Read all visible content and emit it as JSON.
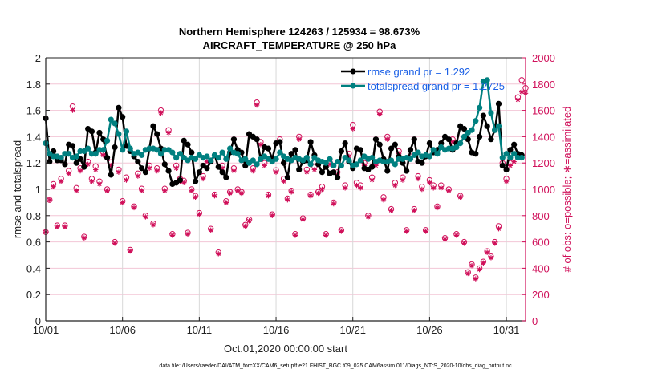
{
  "chart_data": {
    "type": "line",
    "title": [
      "Northern Hemisphere 124263 / 125934 = 98.673%",
      "AIRCRAFT_TEMPERATURE @ 250 hPa"
    ],
    "xlabel": "Oct.01,2020 00:00:00 start",
    "ylabel": "rmse and totalspread",
    "y2label": "# of obs: o=possible; ∗=assimilated",
    "x_ticks": [
      "10/01",
      "10/06",
      "10/11",
      "10/16",
      "10/21",
      "10/26",
      "10/31"
    ],
    "x_tick_days": [
      0,
      5,
      10,
      15,
      20,
      25,
      30
    ],
    "xlim_days": [
      0,
      31.25
    ],
    "ylim": [
      0,
      2
    ],
    "y_ticks": [
      0,
      0.2,
      0.4,
      0.6,
      0.8,
      1,
      1.2,
      1.4,
      1.6,
      1.8,
      2
    ],
    "y2lim": [
      0,
      2000
    ],
    "y2_ticks": [
      0,
      200,
      400,
      600,
      800,
      1000,
      1200,
      1400,
      1600,
      1800,
      2000
    ],
    "grid": true,
    "legend_position": "top-right",
    "footnote": "data file: /Users/raeder/DAI/ATM_forcXX/CAM6_setup/f.e21.FHIST_BGC.f09_025.CAM6assim.011/Diags_NTrS_2020-10/obs_diag_output.nc",
    "time_step_days": 0.25,
    "series": [
      {
        "name": "rmse grand pr = 1.292",
        "color": "#000000",
        "axis": "left",
        "values": [
          1.54,
          1.21,
          1.29,
          1.22,
          1.22,
          1.19,
          1.34,
          1.33,
          1.2,
          1.23,
          1.17,
          1.46,
          1.44,
          1.28,
          1.43,
          1.38,
          1.24,
          1.11,
          1.32,
          1.62,
          1.55,
          1.33,
          1.29,
          1.25,
          1.21,
          1.16,
          1.13,
          1.31,
          1.48,
          1.42,
          1.31,
          1.19,
          1.14,
          1.04,
          1.05,
          1.07,
          1.37,
          1.34,
          1.28,
          1.06,
          1.13,
          1.18,
          1.16,
          1.21,
          1.26,
          1.17,
          1.13,
          1.09,
          1.28,
          1.38,
          1.3,
          1.28,
          1.18,
          1.42,
          1.4,
          1.38,
          1.23,
          1.32,
          1.31,
          1.23,
          1.35,
          1.36,
          1.2,
          1.09,
          1.27,
          1.3,
          1.15,
          1.21,
          1.22,
          1.36,
          1.26,
          1.19,
          1.13,
          1.17,
          1.12,
          1.13,
          1.09,
          1.29,
          1.35,
          1.21,
          1.16,
          1.31,
          1.3,
          1.16,
          1.15,
          1.17,
          1.38,
          1.34,
          1.23,
          1.14,
          1.31,
          1.34,
          1.25,
          1.2,
          1.14,
          1.3,
          1.38,
          1.21,
          1.2,
          1.25,
          1.35,
          1.28,
          1.3,
          1.35,
          1.4,
          1.38,
          1.3,
          1.35,
          1.48,
          1.46,
          1.38,
          1.28,
          1.27,
          1.4,
          1.56,
          1.48,
          1.38,
          1.45,
          1.65,
          1.18,
          1.15,
          1.3,
          1.34,
          1.27,
          1.26
        ]
      },
      {
        "name": "totalspread grand pr = 1.2725",
        "color": "#008080",
        "axis": "left",
        "values": [
          1.35,
          1.27,
          1.25,
          1.25,
          1.24,
          1.27,
          1.27,
          1.24,
          1.25,
          1.29,
          1.29,
          1.31,
          1.27,
          1.27,
          1.3,
          1.3,
          1.37,
          1.53,
          1.5,
          1.42,
          1.3,
          1.44,
          1.31,
          1.27,
          1.28,
          1.26,
          1.3,
          1.31,
          1.31,
          1.3,
          1.27,
          1.3,
          1.3,
          1.28,
          1.24,
          1.27,
          1.24,
          1.22,
          1.24,
          1.23,
          1.26,
          1.24,
          1.25,
          1.22,
          1.26,
          1.24,
          1.28,
          1.23,
          1.31,
          1.28,
          1.27,
          1.22,
          1.23,
          1.2,
          1.22,
          1.19,
          1.23,
          1.25,
          1.23,
          1.21,
          1.23,
          1.28,
          1.25,
          1.23,
          1.22,
          1.24,
          1.23,
          1.22,
          1.24,
          1.19,
          1.24,
          1.22,
          1.21,
          1.2,
          1.23,
          1.18,
          1.21,
          1.18,
          1.24,
          1.22,
          1.18,
          1.19,
          1.22,
          1.25,
          1.23,
          1.24,
          1.21,
          1.22,
          1.21,
          1.21,
          1.22,
          1.19,
          1.23,
          1.23,
          1.24,
          1.23,
          1.26,
          1.28,
          1.25,
          1.26,
          1.25,
          1.3,
          1.27,
          1.32,
          1.3,
          1.31,
          1.31,
          1.32,
          1.35,
          1.4,
          1.43,
          1.45,
          1.52,
          1.62,
          1.82,
          1.83,
          1.58,
          1.45,
          1.48,
          1.24,
          1.27,
          1.24,
          1.27,
          1.24,
          1.24
        ]
      },
      {
        "name": "possible obs",
        "color": "#d0105a",
        "axis": "right",
        "marker": "o",
        "values": [
          675,
          920,
          1040,
          725,
          1080,
          725,
          1140,
          1630,
          1010,
          1160,
          640,
          1210,
          1080,
          1175,
          1060,
          1280,
          1000,
          1205,
          600,
          1150,
          910,
          1090,
          540,
          870,
          1120,
          1005,
          800,
          1180,
          740,
          1160,
          1600,
          1005,
          1450,
          660,
          1180,
          1080,
          1065,
          670,
          1000,
          950,
          820,
          1100,
          1230,
          700,
          960,
          520,
          1180,
          910,
          980,
          1160,
          1000,
          980,
          730,
          770,
          1160,
          1660,
          1360,
          1200,
          960,
          810,
          1145,
          1380,
          1080,
          930,
          990,
          660,
          1400,
          780,
          1150,
          960,
          1170,
          980,
          1020,
          660,
          1205,
          900,
          1130,
          690,
          1030,
          1270,
          1490,
          1050,
          1030,
          1200,
          800,
          1090,
          1200,
          1590,
          940,
          1400,
          850,
          1050,
          1290,
          1090,
          690,
          1250,
          850,
          1100,
          1020,
          690,
          1070,
          1030,
          870,
          1030,
          630,
          1000,
          1380,
          660,
          950,
          600,
          370,
          430,
          330,
          400,
          450,
          530,
          490,
          600,
          720,
          1200,
          1080,
          1200,
          1240,
          1700,
          1830,
          1770
        ]
      },
      {
        "name": "assimilated obs",
        "color": "#d0105a",
        "axis": "right",
        "marker": "*",
        "values": [
          675,
          920,
          1020,
          715,
          1060,
          715,
          1120,
          1600,
          990,
          1140,
          630,
          1190,
          1060,
          1150,
          1040,
          1260,
          990,
          1180,
          590,
          1130,
          900,
          1070,
          530,
          860,
          1100,
          990,
          790,
          1160,
          730,
          1140,
          1580,
          990,
          1430,
          650,
          1160,
          1060,
          1050,
          660,
          990,
          940,
          810,
          1080,
          1210,
          690,
          950,
          510,
          1160,
          900,
          970,
          1140,
          990,
          970,
          720,
          760,
          1140,
          1640,
          1340,
          1180,
          950,
          800,
          1130,
          1360,
          1060,
          920,
          980,
          650,
          1380,
          770,
          1130,
          950,
          1150,
          970,
          1000,
          650,
          1190,
          890,
          1110,
          680,
          1010,
          1250,
          1460,
          1030,
          1010,
          1180,
          790,
          1070,
          1180,
          1570,
          920,
          1380,
          840,
          1030,
          1270,
          1070,
          680,
          1230,
          840,
          1080,
          1000,
          680,
          1050,
          1010,
          860,
          1010,
          620,
          990,
          1360,
          650,
          940,
          590,
          360,
          420,
          320,
          390,
          440,
          520,
          480,
          590,
          700,
          1180,
          1060,
          1180,
          1210,
          1680,
          1740,
          1730
        ]
      }
    ]
  },
  "legend": {
    "rmse": "rmse grand pr = 1.292",
    "spread": "totalspread grand pr = 1.2725"
  }
}
